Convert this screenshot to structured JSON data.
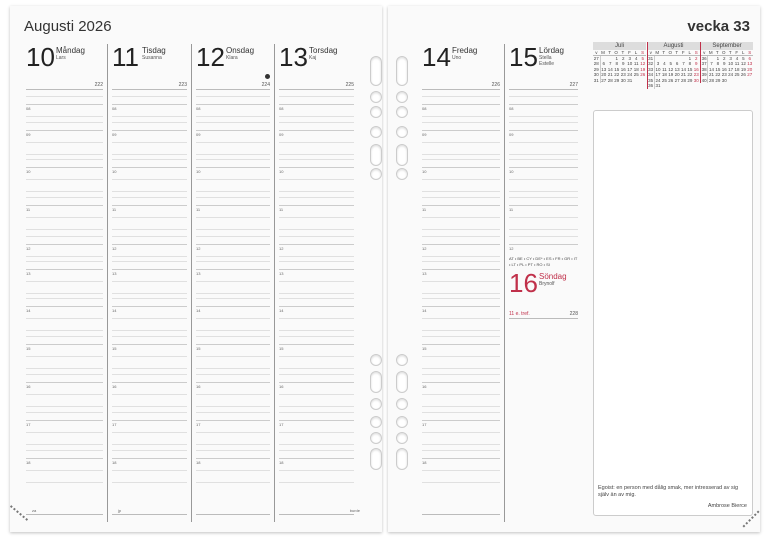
{
  "left": {
    "title": "Augusti 2026",
    "days": [
      {
        "num": "10",
        "name": "Måndag",
        "names": [
          "Lars"
        ],
        "dayno": "222",
        "foot": "za"
      },
      {
        "num": "11",
        "name": "Tisdag",
        "names": [
          "Susanna"
        ],
        "dayno": "223",
        "foot": "jp"
      },
      {
        "num": "12",
        "name": "Onsdag",
        "names": [
          "Klara"
        ],
        "dayno": "224",
        "foot": "",
        "moon": "new-moon-icon"
      },
      {
        "num": "13",
        "name": "Torsdag",
        "names": [
          "Kaj"
        ],
        "dayno": "225",
        "foot": "burde"
      }
    ]
  },
  "right": {
    "title": "vecka 33",
    "days": [
      {
        "num": "14",
        "name": "Fredag",
        "names": [
          "Uno"
        ],
        "dayno": "226"
      },
      {
        "num": "15",
        "name": "Lördag",
        "names": [
          "Stella",
          "Estelle"
        ],
        "dayno": "227"
      }
    ],
    "sunday": {
      "countries": "AT • BE • CY • DE* • ES • FR • GR • IT • LT • PL • PT • RO • SI",
      "num": "16",
      "name": "Söndag",
      "names": [
        "Brynolf"
      ],
      "note": "11 e. tref.",
      "dayno": "228"
    },
    "quote": "Egoist: en person med dålig smak, mer intresserad av sig själv än av mig.",
    "author": "Ambrose Bierce"
  },
  "hours": [
    "08",
    "09",
    "10",
    "11",
    "12",
    "13",
    "14",
    "15",
    "16",
    "17",
    "18"
  ],
  "calendar": {
    "weekday_header": [
      "v",
      "M",
      "T",
      "O",
      "T",
      "F",
      "L",
      "S"
    ],
    "months": [
      {
        "name": "Juli",
        "weeks": [
          [
            "27",
            "",
            "",
            "1",
            "2",
            "3",
            "4",
            "5"
          ],
          [
            "28",
            "6",
            "7",
            "8",
            "9",
            "10",
            "11",
            "12"
          ],
          [
            "29",
            "13",
            "14",
            "15",
            "16",
            "17",
            "18",
            "19"
          ],
          [
            "30",
            "20",
            "21",
            "22",
            "23",
            "24",
            "25",
            "26"
          ],
          [
            "31",
            "27",
            "28",
            "29",
            "30",
            "31",
            "",
            ""
          ]
        ]
      },
      {
        "name": "Augusti",
        "weeks": [
          [
            "31",
            "",
            "",
            "",
            "",
            "",
            "1",
            "2"
          ],
          [
            "32",
            "3",
            "4",
            "5",
            "6",
            "7",
            "8",
            "9"
          ],
          [
            "33",
            "10",
            "11",
            "12",
            "13",
            "14",
            "15",
            "16"
          ],
          [
            "34",
            "17",
            "18",
            "19",
            "20",
            "21",
            "22",
            "23"
          ],
          [
            "35",
            "24",
            "25",
            "26",
            "27",
            "28",
            "29",
            "30"
          ],
          [
            "36",
            "31",
            "",
            "",
            "",
            "",
            "",
            ""
          ]
        ]
      },
      {
        "name": "September",
        "weeks": [
          [
            "36",
            "",
            "1",
            "2",
            "3",
            "4",
            "5",
            "6"
          ],
          [
            "37",
            "7",
            "8",
            "9",
            "10",
            "11",
            "12",
            "13"
          ],
          [
            "38",
            "14",
            "15",
            "16",
            "17",
            "18",
            "19",
            "20"
          ],
          [
            "39",
            "21",
            "22",
            "23",
            "24",
            "25",
            "26",
            "27"
          ],
          [
            "40",
            "28",
            "29",
            "30",
            "",
            "",
            "",
            ""
          ]
        ]
      }
    ]
  },
  "colors": {
    "sunday": "#c0304a",
    "text": "#222"
  }
}
